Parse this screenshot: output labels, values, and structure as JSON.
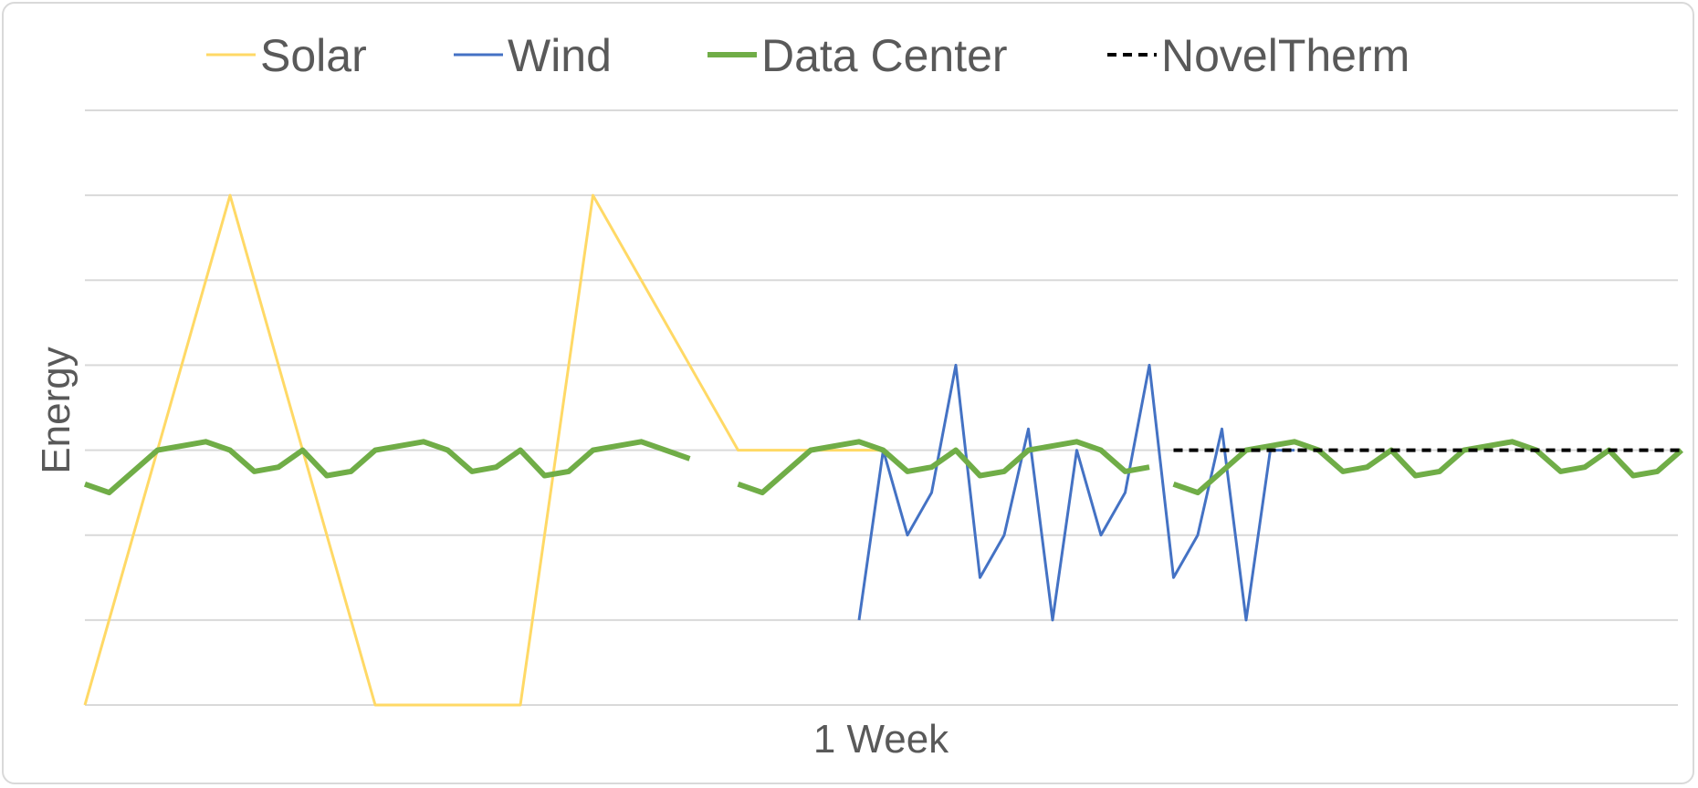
{
  "chart_data": {
    "type": "line",
    "title": "",
    "xlabel": "1 Week",
    "ylabel": "Energy",
    "ylim": [
      0,
      7
    ],
    "grid": true,
    "legend_position": "top",
    "series": [
      {
        "name": "Solar",
        "color": "#ffd966",
        "width": 3,
        "dash": "",
        "x": [
          0,
          6,
          12,
          18,
          21,
          27,
          33
        ],
        "y": [
          0,
          6,
          0,
          0,
          6,
          3,
          null
        ]
      },
      {
        "name": "Wind",
        "color": "#4472c4",
        "width": 3,
        "dash": "",
        "x": [
          32,
          33,
          34,
          35,
          36,
          37,
          38,
          39,
          40,
          41,
          42,
          43,
          44,
          45,
          46,
          47,
          48,
          49,
          50
        ],
        "y": [
          1,
          3,
          2,
          2.5,
          4,
          1.5,
          2,
          3.25,
          1,
          3,
          2,
          2.5,
          4,
          1.5,
          2,
          3.25,
          1,
          3,
          null
        ]
      },
      {
        "name": "Data Center",
        "color": "#70ad47",
        "width": 6,
        "dash": "",
        "x": [
          0,
          1,
          2,
          3,
          4,
          5,
          6,
          7,
          8,
          9,
          10,
          11,
          12,
          13,
          14,
          15,
          16,
          17,
          18,
          19,
          20,
          21,
          22,
          23,
          24,
          25
        ],
        "y": [
          2.6,
          2.5,
          2.75,
          3,
          3.05,
          3.1,
          3,
          2.75,
          2.8,
          3,
          2.7,
          2.75,
          3,
          3.05,
          3.1,
          3,
          2.75,
          2.8,
          3,
          2.7,
          2.75,
          3,
          3.05,
          3.1,
          3,
          null
        ]
      },
      {
        "name": "NovelTherm",
        "color": "#000000",
        "width": 4,
        "dash": "10,7",
        "x": [
          45,
          66
        ],
        "y": [
          3,
          3
        ]
      }
    ]
  }
}
